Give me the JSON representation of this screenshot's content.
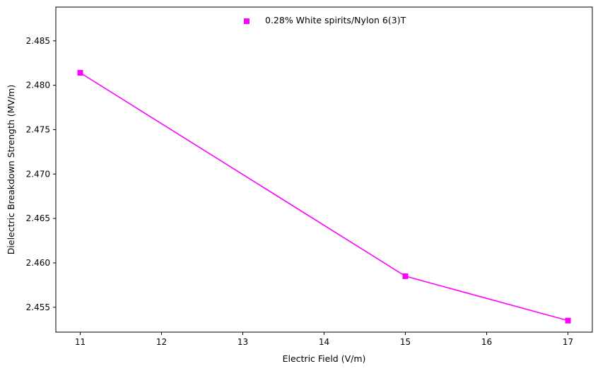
{
  "chart_data": {
    "type": "line",
    "xlabel": "Electric Field (V/m)",
    "ylabel": "Dielectric Breakdown Strength (MV/m)",
    "xlim": [
      10.7,
      17.3
    ],
    "ylim": [
      2.4522,
      2.4888
    ],
    "x_ticks": [
      11,
      12,
      13,
      14,
      15,
      16,
      17
    ],
    "y_ticks": [
      2.455,
      2.46,
      2.465,
      2.47,
      2.475,
      2.48,
      2.485
    ],
    "x_tick_labels": [
      "11",
      "12",
      "13",
      "14",
      "15",
      "16",
      "17"
    ],
    "y_tick_labels": [
      "2.455",
      "2.460",
      "2.465",
      "2.470",
      "2.475",
      "2.480",
      "2.485"
    ],
    "grid": false,
    "legend_position": "top-center",
    "series": [
      {
        "name": "0.28% White spirits/Nylon 6(3)T",
        "color": "#ff00ff",
        "marker": "square",
        "x": [
          11,
          15,
          17
        ],
        "y": [
          2.4814,
          2.4585,
          2.4535
        ]
      }
    ]
  }
}
